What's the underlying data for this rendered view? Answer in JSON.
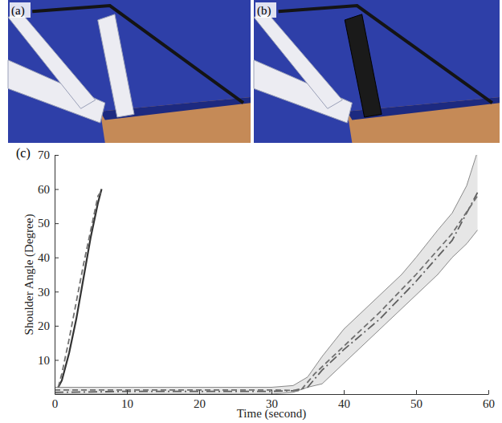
{
  "panels": [
    {
      "label": "(a)"
    },
    {
      "label": "(b)"
    }
  ],
  "chart_data": {
    "type": "line",
    "panel_label": "(c)",
    "x_label": "Time (second)",
    "y_label": "Shoulder Angle (Degree)",
    "xlim": [
      0,
      60
    ],
    "xticks": [
      0,
      10,
      20,
      30,
      40,
      50,
      60
    ],
    "ylim": [
      0,
      70
    ],
    "yticks": [
      10,
      20,
      30,
      40,
      50,
      60,
      70
    ],
    "grid": false,
    "series": [
      {
        "type": "band",
        "color": "#e6e6e6",
        "x": [
          0,
          10,
          20,
          30,
          33,
          35,
          37,
          40,
          43,
          45,
          48,
          50,
          53,
          55,
          57,
          58.5
        ],
        "lower": [
          0,
          0,
          0,
          0,
          0.5,
          2,
          3,
          9,
          15,
          19,
          25,
          29,
          35,
          40,
          44,
          48
        ],
        "upper": [
          2,
          2,
          2,
          2,
          2.5,
          5,
          11,
          19,
          25,
          29,
          35,
          40,
          48,
          53,
          61,
          71
        ]
      },
      {
        "type": "line",
        "color": "#333333",
        "line_style": "solid",
        "x": [
          0.5,
          1,
          2,
          3,
          4,
          5,
          6,
          6.5
        ],
        "values": [
          2,
          4,
          12,
          22,
          34,
          46,
          56,
          60
        ]
      },
      {
        "type": "line",
        "color": "#707070",
        "line_style": "dashed",
        "x": [
          0.5,
          1,
          2,
          3,
          4,
          5,
          6,
          6.5
        ],
        "values": [
          2,
          6,
          16,
          27,
          38,
          48,
          58,
          59.5
        ]
      },
      {
        "type": "line",
        "color": "#606060",
        "line_style": "dashdot",
        "x": [
          0,
          10,
          20,
          30,
          33,
          35,
          37,
          40,
          45,
          50,
          55,
          58.5
        ],
        "values": [
          0.5,
          0.8,
          0.8,
          0.8,
          1,
          2,
          7,
          13,
          22,
          33,
          45,
          59
        ]
      },
      {
        "type": "line",
        "color": "#707070",
        "line_style": "dashed",
        "x": [
          0,
          10,
          20,
          30,
          34,
          36,
          40,
          45,
          50,
          55,
          58.5
        ],
        "values": [
          1.2,
          1.2,
          1.2,
          1.2,
          1,
          6,
          14,
          24,
          35,
          47,
          58
        ]
      }
    ]
  }
}
